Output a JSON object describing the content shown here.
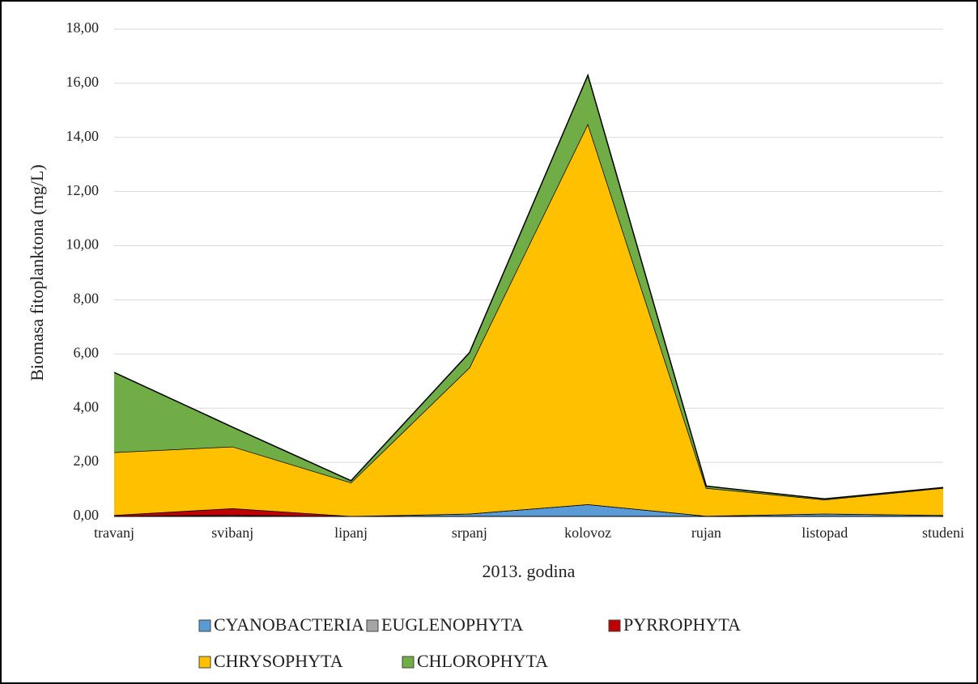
{
  "chart_data": {
    "type": "stacked_area",
    "y_label": "Biomasa fitoplanktona (mg/L)",
    "x_label": "2013. godina",
    "categories": [
      "travanj",
      "svibanj",
      "lipanj",
      "srpanj",
      "kolovoz",
      "rujan",
      "listopad",
      "studeni"
    ],
    "series": [
      {
        "name": "CYANOBACTERIA",
        "color": "#5b9bd5",
        "values": [
          0.02,
          0.05,
          0.01,
          0.1,
          0.45,
          0.02,
          0.1,
          0.05
        ]
      },
      {
        "name": "EUGLENOPHYTA",
        "color": "#a5a5a5",
        "values": [
          0,
          0,
          0,
          0,
          0,
          0,
          0,
          0
        ]
      },
      {
        "name": "PYRROPHYTA",
        "color": "#c00000",
        "values": [
          0.03,
          0.25,
          0,
          0,
          0,
          0,
          0,
          0
        ]
      },
      {
        "name": "CHRYSOPHYTA",
        "color": "#ffc000",
        "values": [
          2.32,
          2.28,
          1.24,
          5.4,
          14.05,
          1.03,
          0.52,
          1.0
        ]
      },
      {
        "name": "CHLOROPHYTA",
        "color": "#70ad47",
        "values": [
          2.95,
          0.72,
          0.07,
          0.55,
          1.8,
          0.07,
          0.03,
          0.02
        ]
      }
    ],
    "ylim": [
      0,
      18
    ],
    "yticks": [
      {
        "value": 0,
        "label": "0,00"
      },
      {
        "value": 2,
        "label": "2,00"
      },
      {
        "value": 4,
        "label": "4,00"
      },
      {
        "value": 6,
        "label": "6,00"
      },
      {
        "value": 8,
        "label": "8,00"
      },
      {
        "value": 10,
        "label": "10,00"
      },
      {
        "value": 12,
        "label": "12,00"
      },
      {
        "value": 14,
        "label": "14,00"
      },
      {
        "value": 16,
        "label": "16,00"
      },
      {
        "value": 18,
        "label": "18,00"
      }
    ],
    "grid": true,
    "legend": "bottom"
  }
}
